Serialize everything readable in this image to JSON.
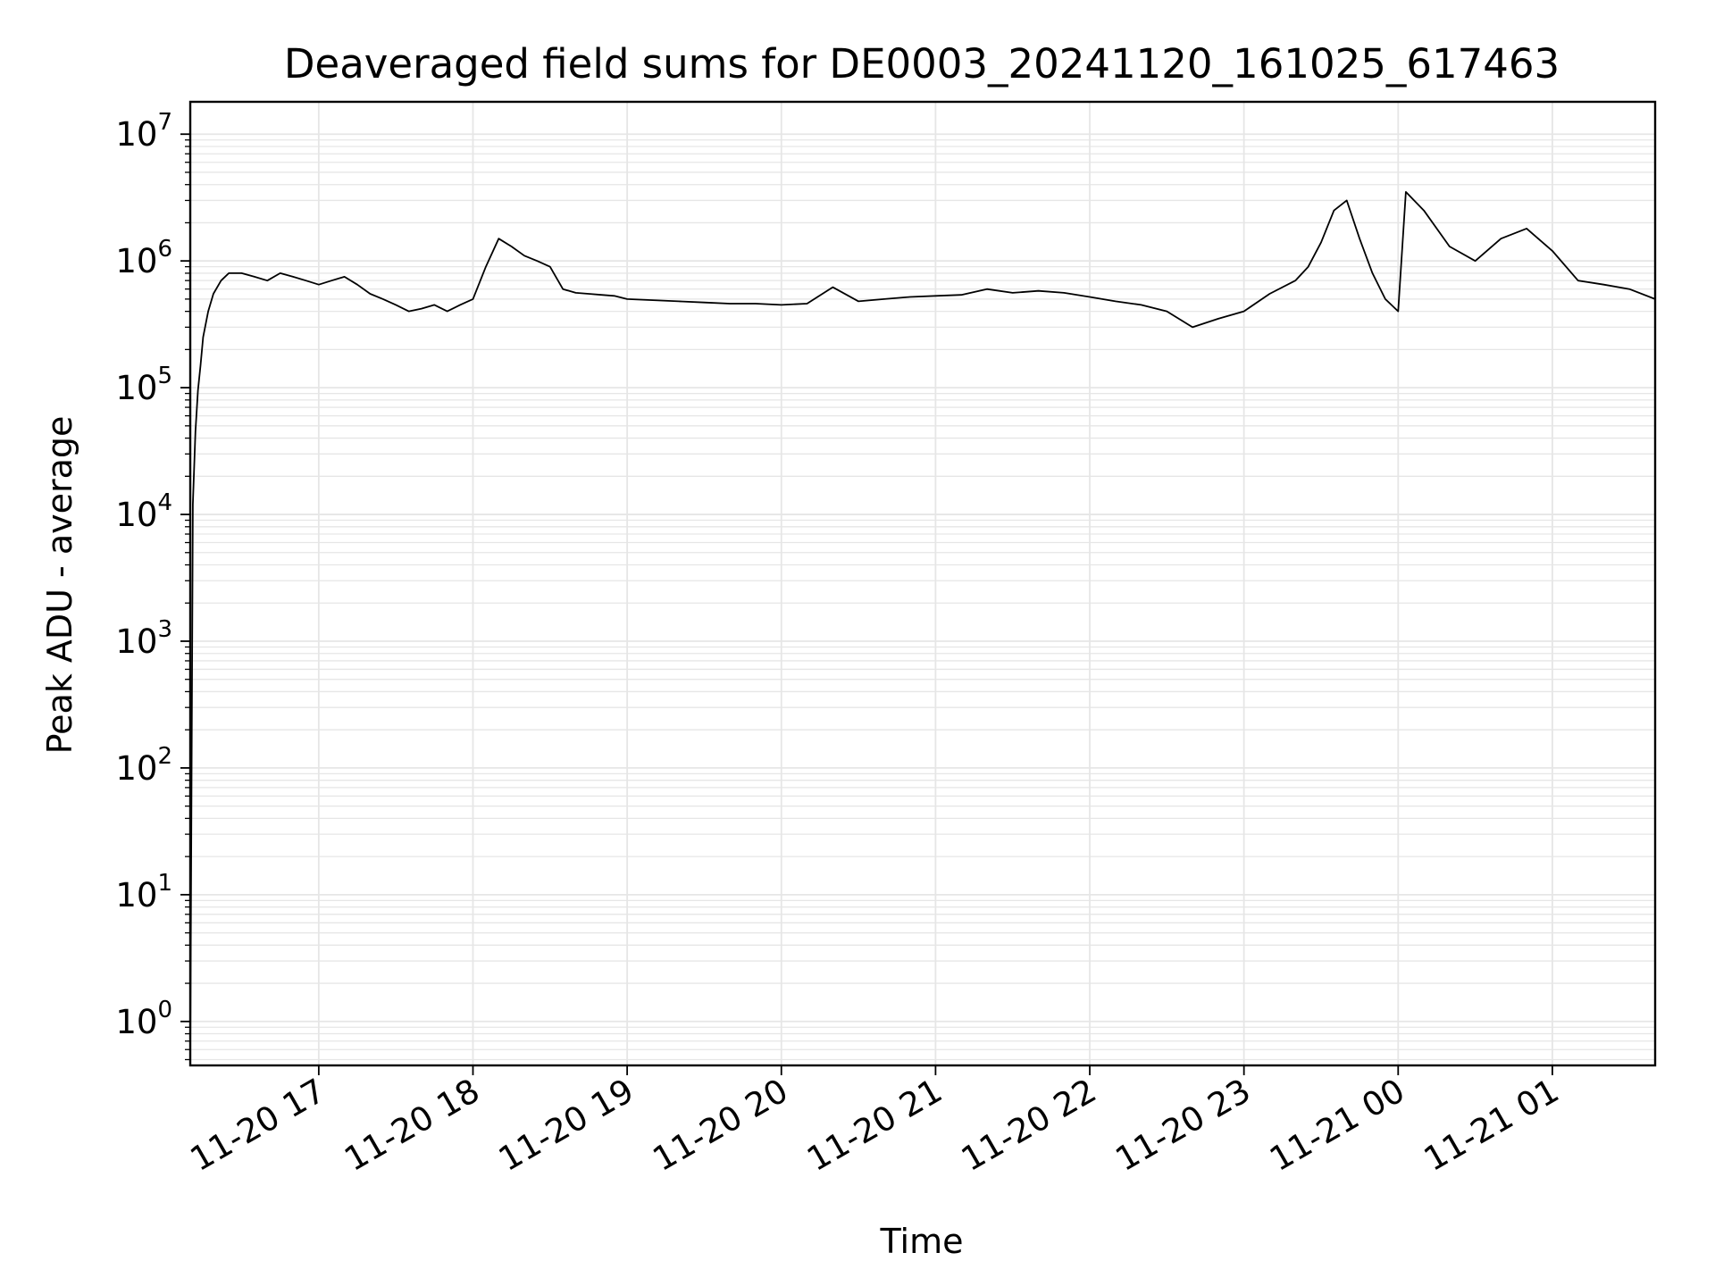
{
  "chart_data": {
    "type": "line",
    "title": "Deaveraged field sums for DE0003_20241120_161025_617463",
    "xlabel": "Time",
    "ylabel": "Peak ADU - average",
    "yscale": "log",
    "ylim": [
      0.45,
      18000000.0
    ],
    "xlim": [
      "2024-11-20 16:10",
      "2024-11-21 01:40"
    ],
    "grid": true,
    "line_color": "#000000",
    "grid_color": "#e6e6e6",
    "x_ticks": [
      "2024-11-20 17:00",
      "2024-11-20 18:00",
      "2024-11-20 19:00",
      "2024-11-20 20:00",
      "2024-11-20 21:00",
      "2024-11-20 22:00",
      "2024-11-20 23:00",
      "2024-11-21 00:00",
      "2024-11-21 01:00"
    ],
    "x_tick_labels": [
      "11-20 17",
      "11-20 18",
      "11-20 19",
      "11-20 20",
      "11-20 21",
      "11-20 22",
      "11-20 23",
      "11-21 00",
      "11-21 01"
    ],
    "y_tick_mantissa": [
      "10",
      "10",
      "10",
      "10",
      "10",
      "10",
      "10",
      "10"
    ],
    "y_tick_exponents": [
      "0",
      "1",
      "2",
      "3",
      "4",
      "5",
      "6",
      "7"
    ],
    "series": [
      {
        "x": [
          "2024-11-20 16:10",
          "2024-11-20 16:11",
          "2024-11-20 16:12",
          "2024-11-20 16:13",
          "2024-11-20 16:14",
          "2024-11-20 16:15",
          "2024-11-20 16:17",
          "2024-11-20 16:19",
          "2024-11-20 16:22",
          "2024-11-20 16:25",
          "2024-11-20 16:30",
          "2024-11-20 16:35",
          "2024-11-20 16:40",
          "2024-11-20 16:45",
          "2024-11-20 16:50",
          "2024-11-20 16:55",
          "2024-11-20 17:00",
          "2024-11-20 17:05",
          "2024-11-20 17:10",
          "2024-11-20 17:15",
          "2024-11-20 17:20",
          "2024-11-20 17:25",
          "2024-11-20 17:30",
          "2024-11-20 17:35",
          "2024-11-20 17:40",
          "2024-11-20 17:45",
          "2024-11-20 17:50",
          "2024-11-20 17:55",
          "2024-11-20 18:00",
          "2024-11-20 18:05",
          "2024-11-20 18:10",
          "2024-11-20 18:15",
          "2024-11-20 18:20",
          "2024-11-20 18:25",
          "2024-11-20 18:30",
          "2024-11-20 18:35",
          "2024-11-20 18:40",
          "2024-11-20 18:45",
          "2024-11-20 18:50",
          "2024-11-20 18:55",
          "2024-11-20 19:00",
          "2024-11-20 19:10",
          "2024-11-20 19:20",
          "2024-11-20 19:30",
          "2024-11-20 19:40",
          "2024-11-20 19:50",
          "2024-11-20 20:00",
          "2024-11-20 20:10",
          "2024-11-20 20:20",
          "2024-11-20 20:30",
          "2024-11-20 20:40",
          "2024-11-20 20:50",
          "2024-11-20 21:00",
          "2024-11-20 21:10",
          "2024-11-20 21:20",
          "2024-11-20 21:30",
          "2024-11-20 21:40",
          "2024-11-20 21:50",
          "2024-11-20 22:00",
          "2024-11-20 22:10",
          "2024-11-20 22:20",
          "2024-11-20 22:30",
          "2024-11-20 22:40",
          "2024-11-20 22:50",
          "2024-11-20 23:00",
          "2024-11-20 23:10",
          "2024-11-20 23:20",
          "2024-11-20 23:25",
          "2024-11-20 23:30",
          "2024-11-20 23:35",
          "2024-11-20 23:40",
          "2024-11-20 23:45",
          "2024-11-20 23:50",
          "2024-11-20 23:55",
          "2024-11-21 00:00",
          "2024-11-21 00:03",
          "2024-11-21 00:10",
          "2024-11-21 00:20",
          "2024-11-21 00:30",
          "2024-11-21 00:40",
          "2024-11-21 00:50",
          "2024-11-21 01:00",
          "2024-11-21 01:10",
          "2024-11-21 01:20",
          "2024-11-21 01:30",
          "2024-11-21 01:40"
        ],
        "y": [
          0.5,
          12000,
          45000,
          95000,
          150000,
          250000,
          400000,
          550000,
          700000,
          800000,
          800000,
          750000,
          700000,
          800000,
          750000,
          700000,
          650000,
          700000,
          750000,
          650000,
          550000,
          500000,
          450000,
          400000,
          420000,
          450000,
          400000,
          450000,
          500000,
          900000,
          1500000,
          1300000,
          1100000,
          1000000,
          900000,
          600000,
          560000,
          550000,
          540000,
          530000,
          500000,
          490000,
          480000,
          470000,
          460000,
          460000,
          450000,
          460000,
          620000,
          480000,
          500000,
          520000,
          530000,
          540000,
          600000,
          560000,
          580000,
          560000,
          520000,
          480000,
          450000,
          400000,
          300000,
          350000,
          400000,
          550000,
          700000,
          900000,
          1400000,
          2500000,
          3000000,
          1500000,
          800000,
          500000,
          400000,
          3500000,
          2500000,
          1300000,
          1000000,
          1500000,
          1800000,
          1200000,
          700000,
          650000,
          600000,
          500000
        ]
      }
    ]
  }
}
